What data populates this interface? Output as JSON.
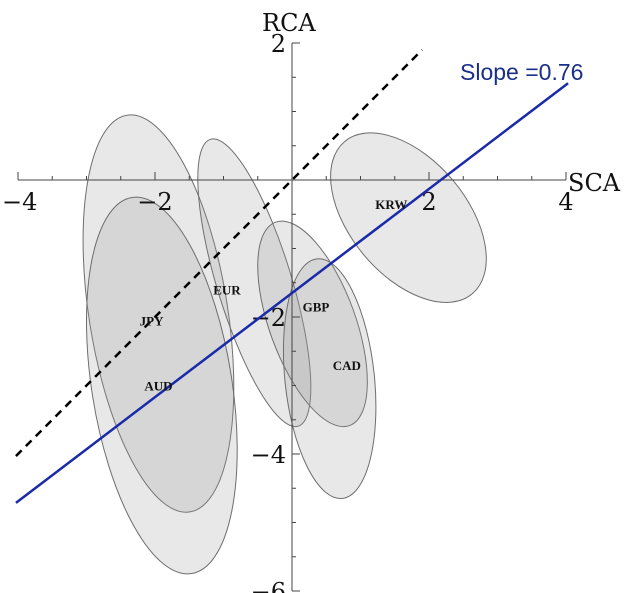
{
  "chart_data": {
    "type": "scatter",
    "title": "",
    "xlabel": "SCA",
    "ylabel": "RCA",
    "xlim": [
      -4,
      4
    ],
    "ylim": [
      -6,
      2
    ],
    "x_ticks": [
      -4,
      -2,
      2,
      4
    ],
    "y_ticks": [
      -6,
      -4,
      -2,
      2
    ],
    "x_tick_labels": [
      "−4",
      "−2",
      "2",
      "4"
    ],
    "y_tick_labels": [
      "−6",
      "−4",
      "−2",
      "2"
    ],
    "grid": false,
    "ellipses": [
      {
        "name": "JPY",
        "center": [
          -1.95,
          -1.95
        ],
        "x_range": [
          -3.05,
          -0.85
        ],
        "y_range": [
          -4.95,
          0.85
        ],
        "tilt_deg": -9
      },
      {
        "name": "AUD",
        "center": [
          -1.9,
          -3.0
        ],
        "x_range": [
          -2.95,
          -0.75
        ],
        "y_range": [
          -5.75,
          -0.25
        ],
        "tilt_deg": -9
      },
      {
        "name": "EUR",
        "center": [
          -0.55,
          -1.5
        ],
        "x_range": [
          -1.4,
          0.25
        ],
        "y_range": [
          -3.55,
          0.65
        ],
        "tilt_deg": -17
      },
      {
        "name": "GBP",
        "center": [
          0.3,
          -2.1
        ],
        "x_range": [
          -0.5,
          1.1
        ],
        "y_range": [
          -3.55,
          -0.55
        ],
        "tilt_deg": -20
      },
      {
        "name": "CAD",
        "center": [
          0.55,
          -2.9
        ],
        "x_range": [
          -0.1,
          1.25
        ],
        "y_range": [
          -4.55,
          -1.05
        ],
        "tilt_deg": -6
      },
      {
        "name": "KRW",
        "center": [
          1.7,
          -0.55
        ],
        "x_range": [
          0.45,
          2.85
        ],
        "y_range": [
          -1.75,
          1.15
        ],
        "tilt_deg": -40
      }
    ],
    "series": [
      {
        "name": "KRW",
        "type": "label",
        "x": 1.45,
        "y": -0.35
      },
      {
        "name": "EUR",
        "type": "label",
        "x": -0.95,
        "y": -1.6
      },
      {
        "name": "GBP",
        "type": "label",
        "x": 0.35,
        "y": -1.85
      },
      {
        "name": "JPY",
        "type": "label",
        "x": -2.05,
        "y": -2.05
      },
      {
        "name": "CAD",
        "type": "label",
        "x": 0.8,
        "y": -2.7
      },
      {
        "name": "AUD",
        "type": "label",
        "x": -1.95,
        "y": -3.0
      }
    ],
    "lines": [
      {
        "name": "Slope =0.76",
        "slope": 0.76,
        "intercept": -1.65,
        "x_range": [
          -4.03,
          4.03
        ],
        "color": "#1a2aa8",
        "style": "solid"
      },
      {
        "name": "",
        "slope": 1.0,
        "intercept": 0.0,
        "x_range": [
          -4.03,
          1.9
        ],
        "color": "#000000",
        "style": "dashed"
      }
    ],
    "annotations": [
      {
        "text": "Slope =0.76",
        "x": 2.65,
        "y": 1.35,
        "color": "#1a2f8a"
      }
    ],
    "legend": "none"
  }
}
